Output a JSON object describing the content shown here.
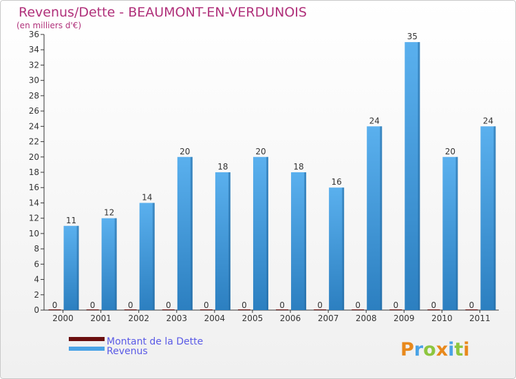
{
  "chart_data": {
    "type": "bar",
    "title": "Revenus/Dette - BEAUMONT-EN-VERDUNOIS",
    "subtitle": "(en milliers d'€)",
    "categories": [
      "2000",
      "2001",
      "2002",
      "2003",
      "2004",
      "2005",
      "2006",
      "2007",
      "2008",
      "2009",
      "2010",
      "2011"
    ],
    "series": [
      {
        "name": "Montant de la Dette",
        "color": "#6b0f0f",
        "values": [
          0,
          0,
          0,
          0,
          0,
          0,
          0,
          0,
          0,
          0,
          0,
          0
        ]
      },
      {
        "name": "Revenus",
        "color": "#4aa3e6",
        "values": [
          11,
          12,
          14,
          20,
          18,
          20,
          18,
          16,
          24,
          35,
          20,
          24
        ]
      }
    ],
    "ylim": [
      0,
      36
    ],
    "yticks": [
      0,
      2,
      4,
      6,
      8,
      10,
      12,
      14,
      16,
      18,
      20,
      22,
      24,
      26,
      28,
      30,
      32,
      34,
      36
    ],
    "grid": false,
    "legend": "bottom-left"
  },
  "brand": {
    "text": "Proxiti",
    "letters": [
      "P",
      "r",
      "o",
      "x",
      "i",
      "t",
      "i"
    ],
    "colors": [
      "#e8891c",
      "#4aa3e6",
      "#8dc63f",
      "#e8891c",
      "#4aa3e6",
      "#8dc63f",
      "#e8891c"
    ]
  },
  "colors": {
    "title": "#b0307a",
    "legend_text": "#5a5ae6",
    "axis": "#333333",
    "bg": "#ffffff",
    "border": "#c8c8c8"
  }
}
